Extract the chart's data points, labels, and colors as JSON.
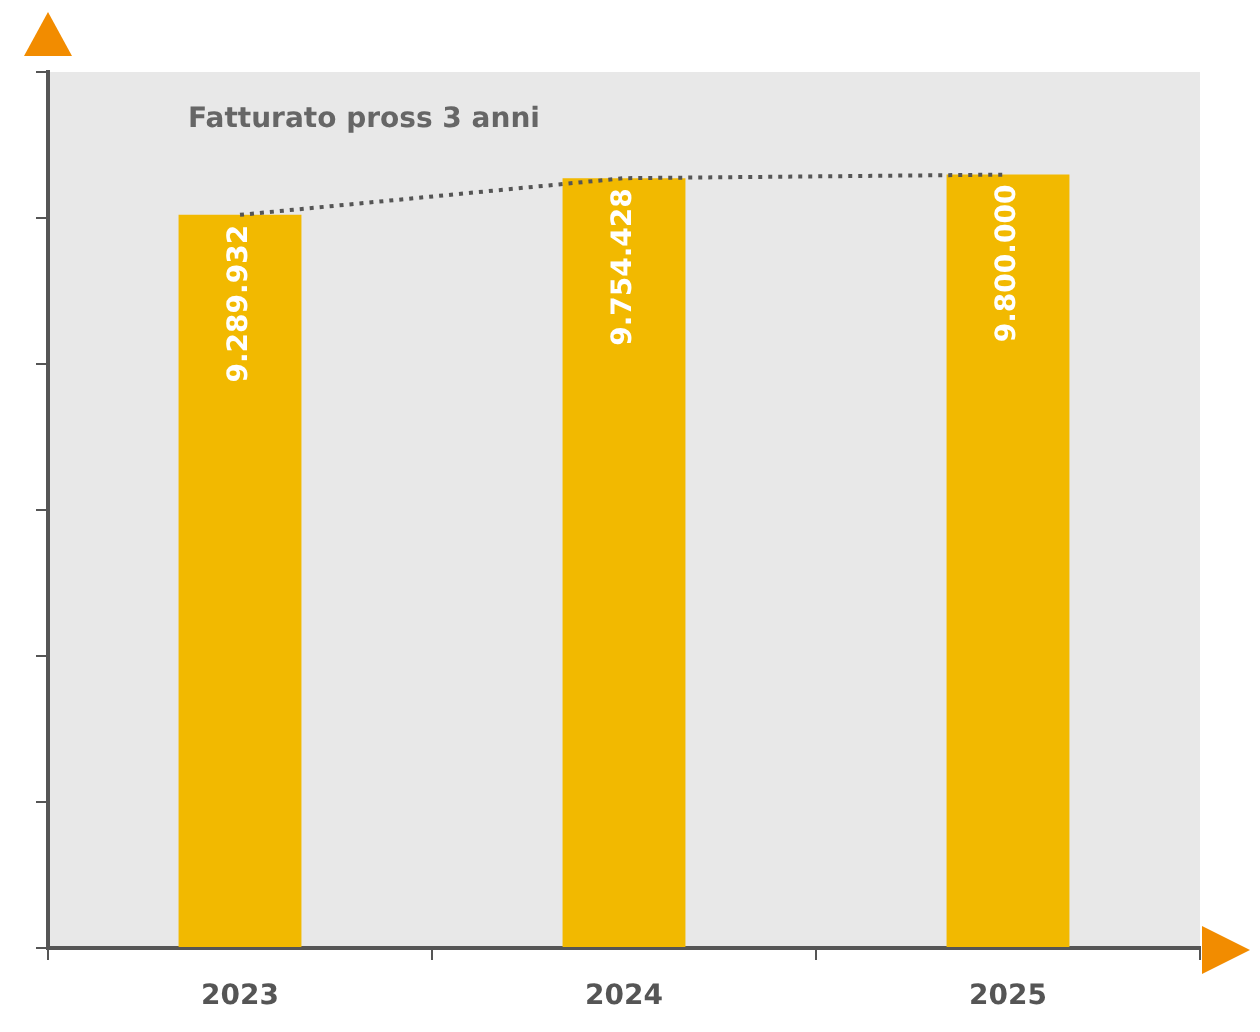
{
  "chart_data": {
    "type": "bar",
    "title": "Fatturato pross 3 anni",
    "categories": [
      "2023",
      "2024",
      "2025"
    ],
    "series": [
      {
        "color": "#f2b900",
        "values": [
          9289932,
          9754428,
          9800000
        ],
        "value_labels": [
          "9.289.932",
          "9.754.428",
          "9.800.000"
        ]
      },
      {
        "type": "line",
        "color": "#555555",
        "values": [
          9289932,
          9754428,
          9800000
        ],
        "line_style": "dotted",
        "marker": "none"
      }
    ],
    "ylim": [
      0,
      11100000
    ],
    "yticks": [
      {
        "value": 0,
        "label": null
      },
      {
        "value": 1850000,
        "label": null
      },
      {
        "value": 3700000,
        "label": null
      },
      {
        "value": 5550000,
        "label": null
      },
      {
        "value": 7400000,
        "label": null
      },
      {
        "value": 9250000,
        "label": null
      },
      {
        "value": 11100000,
        "label": null
      }
    ],
    "tick_labels": "x",
    "grid": false,
    "legend": false
  }
}
